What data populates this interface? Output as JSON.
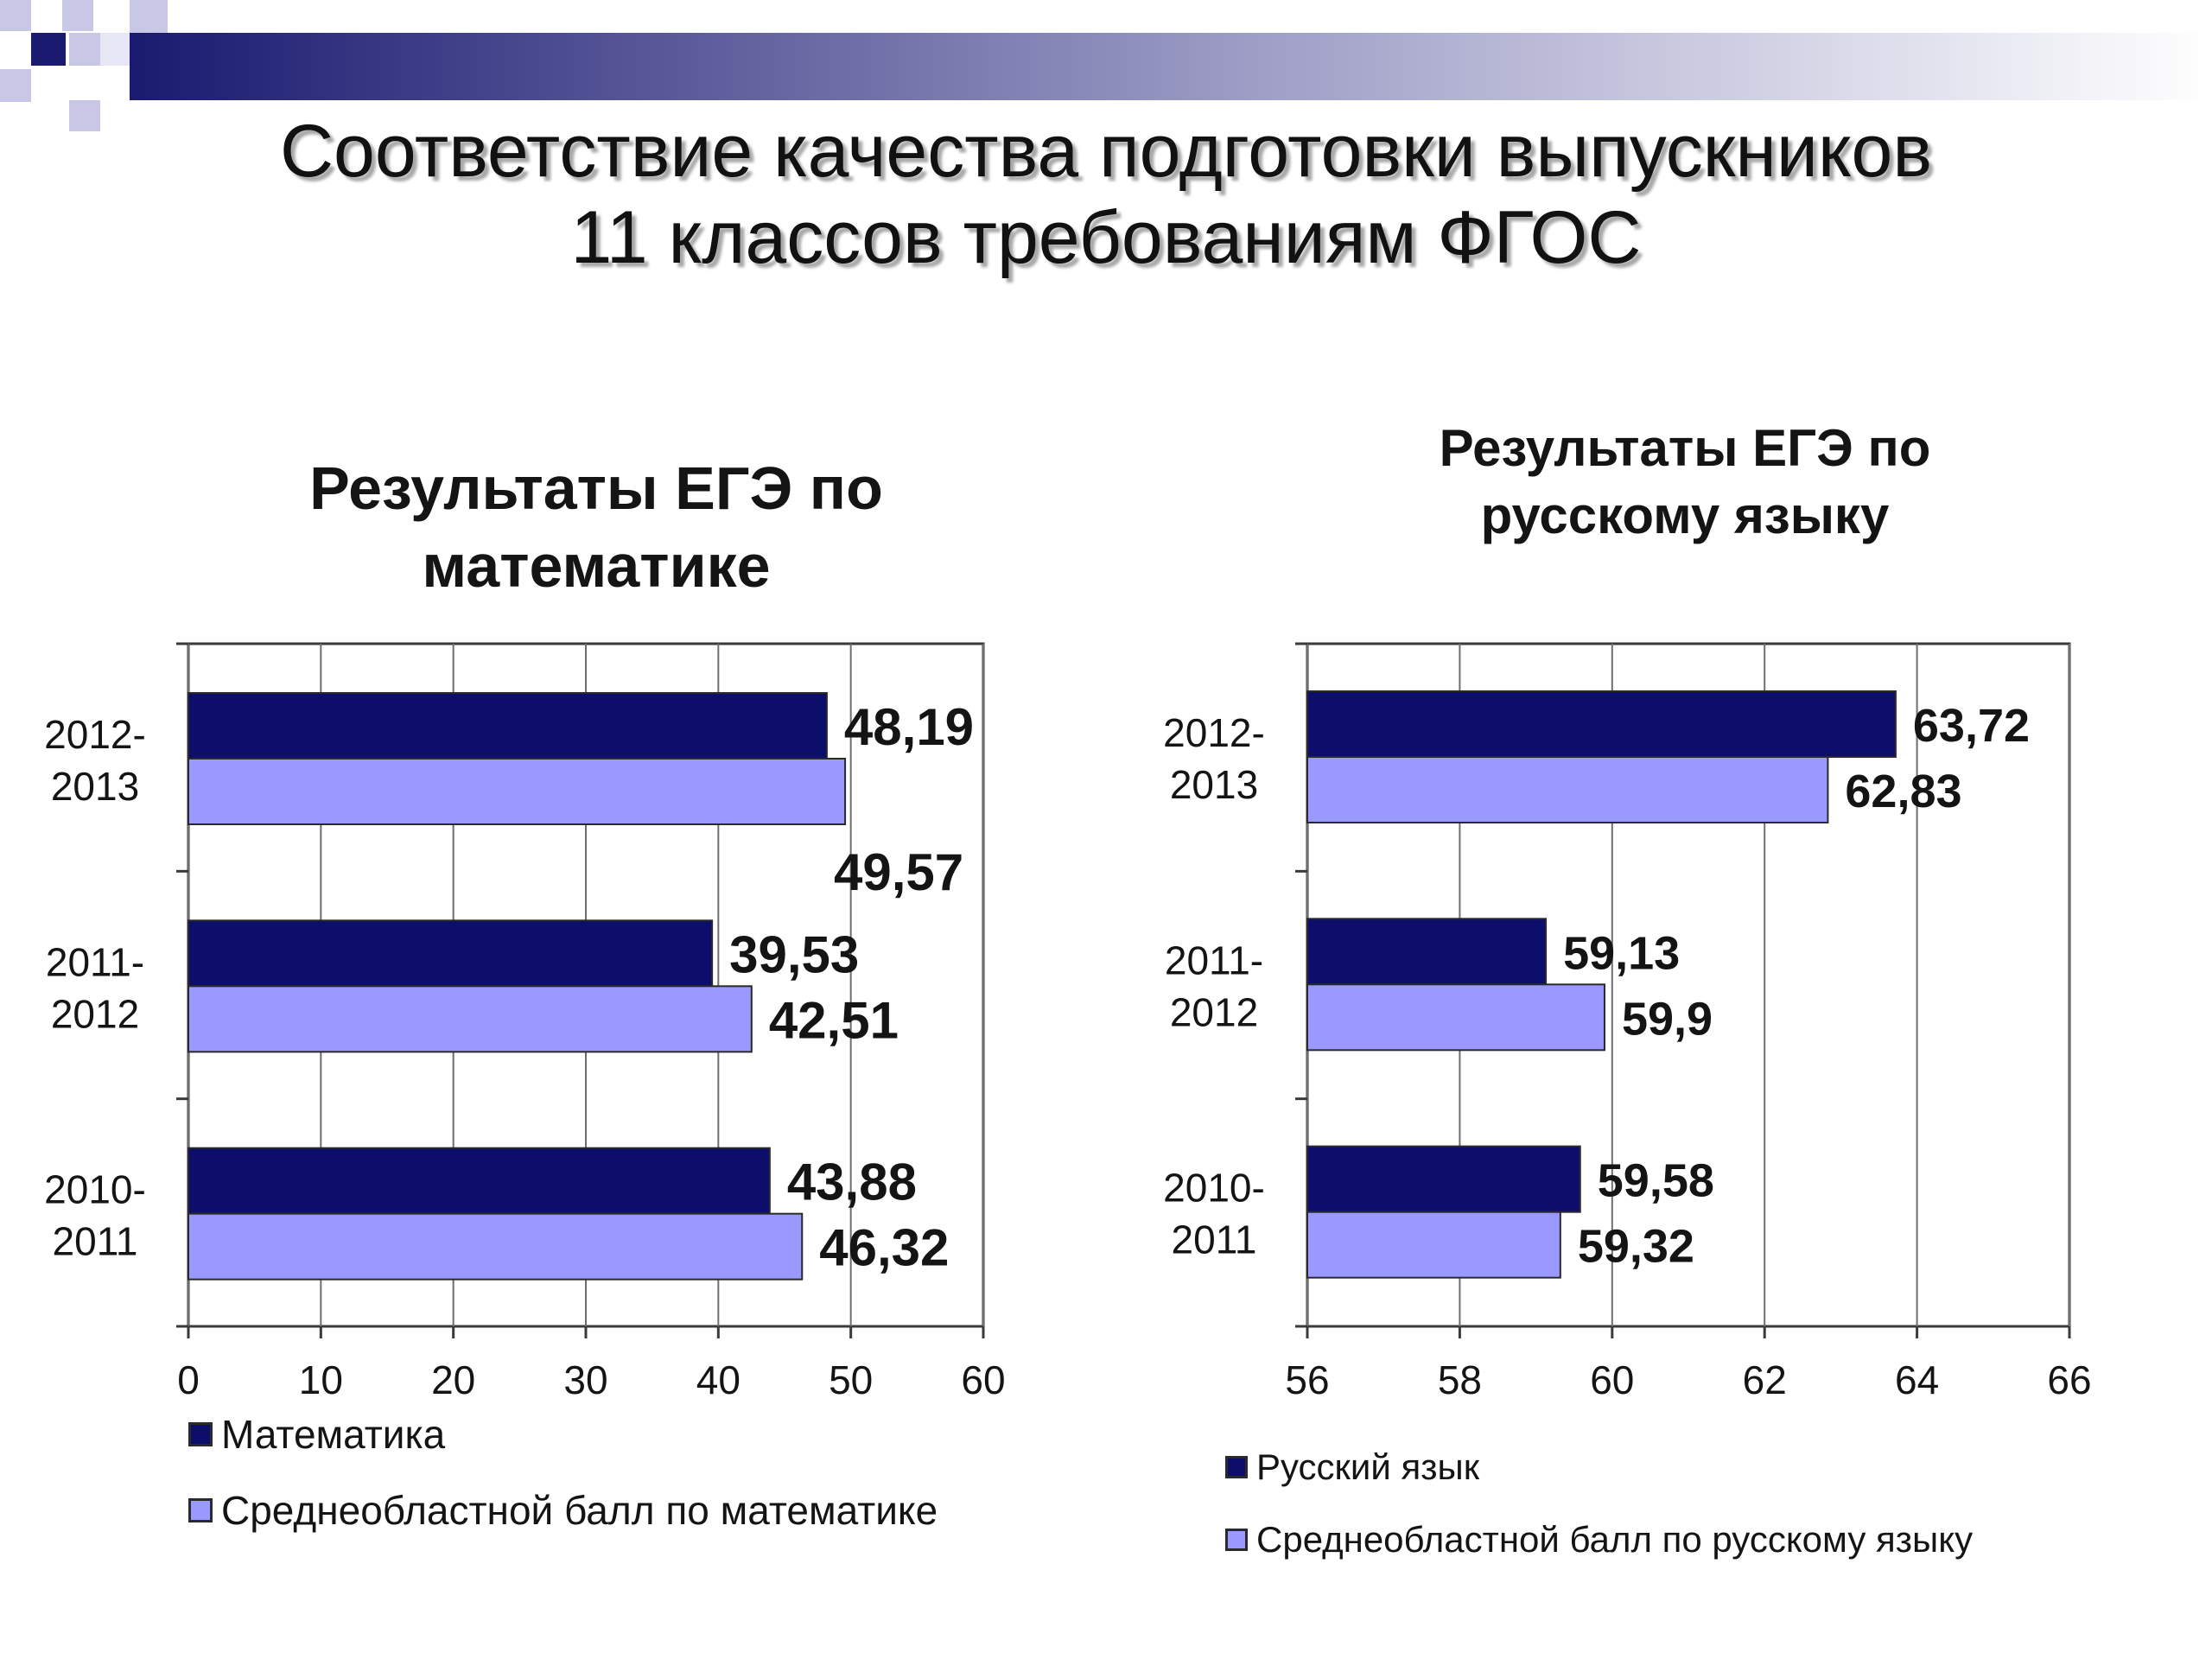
{
  "slide": {
    "title_line1": "Соответствие качества подготовки выпускников",
    "title_line2": "11 классов требованиям ФГОС"
  },
  "colors": {
    "dark_bar": "#0d0d6b",
    "light_bar": "#9999ff",
    "header_dark": "#1a1a70"
  },
  "chart_data": [
    {
      "type": "bar",
      "orientation": "horizontal",
      "title_line1": "Результаты ЕГЭ по",
      "title_line2": "математике",
      "categories": [
        [
          "2012-",
          "2013"
        ],
        [
          "2011-",
          "2012"
        ],
        [
          "2010-",
          "2011"
        ]
      ],
      "series": [
        {
          "name": "Математика",
          "color": "#0d0d6b",
          "values": [
            48.19,
            39.53,
            43.88
          ],
          "labels": [
            "48,19",
            "39,53",
            "43,88"
          ]
        },
        {
          "name": "Среднеобластной балл по математике",
          "color": "#9999ff",
          "values": [
            49.57,
            42.51,
            46.32
          ],
          "labels": [
            "49,57",
            "42,51",
            "46,32"
          ]
        }
      ],
      "xlim": [
        0,
        60
      ],
      "xticks": [
        "0",
        "10",
        "20",
        "30",
        "40",
        "50",
        "60"
      ],
      "grid": true,
      "legend_position": "bottom"
    },
    {
      "type": "bar",
      "orientation": "horizontal",
      "title_line1": "Результаты ЕГЭ по",
      "title_line2": "русскому языку",
      "categories": [
        [
          "2012-",
          "2013"
        ],
        [
          "2011-",
          "2012"
        ],
        [
          "2010-",
          "2011"
        ]
      ],
      "series": [
        {
          "name": "Русский язык",
          "color": "#0d0d6b",
          "values": [
            63.72,
            59.13,
            59.58
          ],
          "labels": [
            "63,72",
            "59,13",
            "59,58"
          ]
        },
        {
          "name": "Среднеобластной балл по русскому языку",
          "color": "#9999ff",
          "values": [
            62.83,
            59.9,
            59.32
          ],
          "labels": [
            "62,83",
            "59,9",
            "59,32"
          ]
        }
      ],
      "xlim": [
        56,
        66
      ],
      "xticks": [
        "56",
        "58",
        "60",
        "62",
        "64",
        "66"
      ],
      "grid": true,
      "legend_position": "bottom"
    }
  ]
}
